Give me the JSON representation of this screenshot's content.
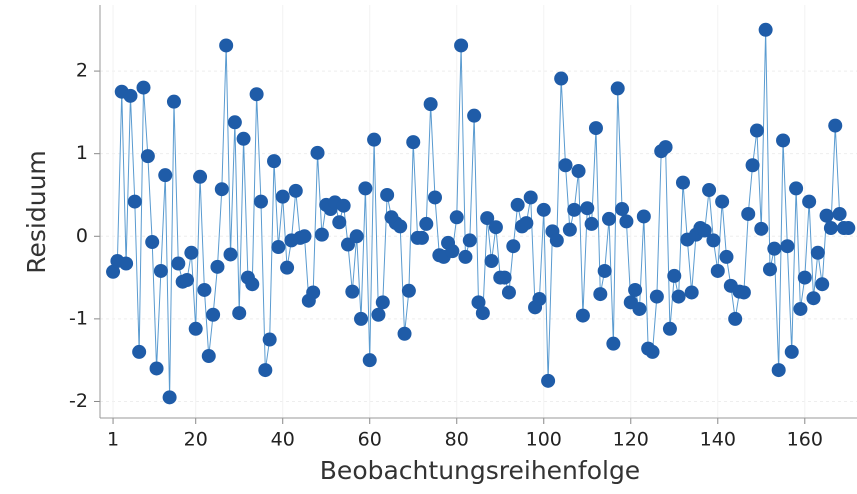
{
  "chart_data": {
    "type": "line",
    "xlabel": "Beobachtungsreihenfolge",
    "ylabel": "Residuum",
    "line_color": "#5a9bd0",
    "marker_color": "#1f5ca8",
    "xlim": [
      -2,
      172
    ],
    "ylim": [
      -2.2,
      2.8
    ],
    "xticks": [
      1,
      20,
      40,
      60,
      80,
      100,
      120,
      140,
      160
    ],
    "yticks": [
      -2,
      -1,
      0,
      1,
      2
    ],
    "grid": true,
    "values": [
      -0.43,
      -0.3,
      1.75,
      -0.33,
      1.7,
      0.42,
      -1.4,
      1.8,
      0.97,
      -0.07,
      -1.6,
      -0.42,
      0.74,
      -1.95,
      1.63,
      -0.33,
      -0.55,
      -0.53,
      -0.2,
      -1.12,
      0.72,
      -0.65,
      -1.45,
      -0.95,
      -0.37,
      0.57,
      2.31,
      -0.22,
      1.38,
      -0.93,
      1.18,
      -0.5,
      -0.58,
      1.72,
      0.42,
      -1.62,
      -1.25,
      0.91,
      -0.13,
      0.48,
      -0.38,
      -0.05,
      0.55,
      -0.02,
      0.0,
      -0.78,
      -0.68,
      1.01,
      0.02,
      0.38,
      0.33,
      0.41,
      0.17,
      0.37,
      -0.1,
      -0.67,
      0.0,
      -1.0,
      0.58,
      -1.5,
      1.17,
      -0.95,
      -0.8,
      0.5,
      0.23,
      0.16,
      0.12,
      -1.18,
      -0.66,
      1.14,
      -0.02,
      -0.02,
      0.15,
      1.6,
      0.47,
      -0.23,
      -0.25,
      -0.08,
      -0.18,
      0.23,
      2.31,
      -0.25,
      -0.05,
      1.46,
      -0.8,
      -0.93,
      0.22,
      -0.3,
      0.11,
      -0.5,
      -0.5,
      -0.68,
      -0.12,
      0.38,
      0.12,
      0.16,
      0.47,
      -0.86,
      -0.76,
      0.32,
      -1.75,
      0.06,
      -0.05,
      1.91,
      0.86,
      0.08,
      0.32,
      0.79,
      -0.96,
      0.34,
      0.15,
      1.31,
      -0.7,
      -0.42,
      0.21,
      -1.3,
      1.79,
      0.33,
      0.18,
      -0.8,
      -0.65,
      -0.88,
      0.24,
      -1.36,
      -1.4,
      -0.73,
      1.03,
      1.08,
      -1.12,
      -0.48,
      -0.73,
      0.65,
      -0.04,
      -0.68,
      0.02,
      0.1,
      0.07,
      0.56,
      -0.05,
      -0.42,
      0.42,
      -0.25,
      -0.6,
      -1.0,
      -0.67,
      -0.68,
      0.27,
      0.86,
      1.28,
      0.09,
      2.5,
      -0.4,
      -0.15,
      -1.62,
      1.16,
      -0.12,
      -1.4,
      0.58,
      -0.88,
      -0.5,
      0.42,
      -0.75,
      -0.2,
      -0.58,
      0.25,
      0.1,
      1.34,
      0.27,
      0.1,
      0.1
    ]
  }
}
